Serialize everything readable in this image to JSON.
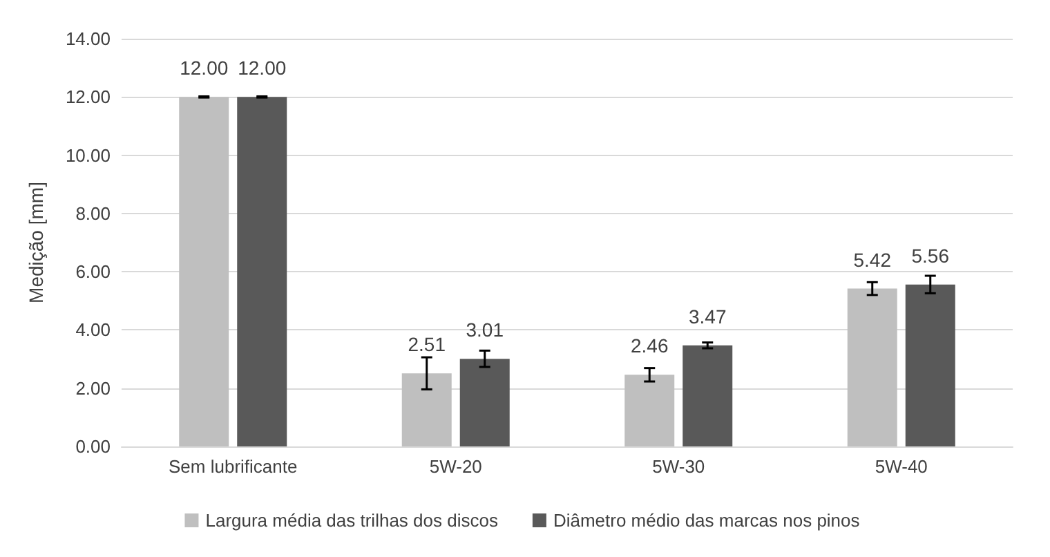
{
  "chart_data": {
    "type": "bar",
    "ylabel": "Medição [mm]",
    "categories": [
      "Sem lubrificante",
      "5W-20",
      "5W-30",
      "5W-40"
    ],
    "series": [
      {
        "name": "Largura média das trilhas dos discos",
        "color": "#bfbfbf",
        "values": [
          12.0,
          2.51,
          2.46,
          5.42
        ],
        "value_labels": [
          "12.00",
          "2.51",
          "2.46",
          "5.42"
        ],
        "errors": [
          0.02,
          0.55,
          0.23,
          0.22
        ]
      },
      {
        "name": "Diâmetro médio das marcas nos pinos",
        "color": "#595959",
        "values": [
          12.0,
          3.01,
          3.47,
          5.56
        ],
        "value_labels": [
          "12.00",
          "3.01",
          "3.47",
          "5.56"
        ],
        "errors": [
          0.02,
          0.28,
          0.1,
          0.3
        ]
      }
    ],
    "ylim": [
      0,
      14
    ],
    "yticks": [
      {
        "value": 0,
        "label": "0.00"
      },
      {
        "value": 2,
        "label": "2.00"
      },
      {
        "value": 4,
        "label": "4.00"
      },
      {
        "value": 6,
        "label": "6.00"
      },
      {
        "value": 8,
        "label": "8.00"
      },
      {
        "value": 10,
        "label": "10.00"
      },
      {
        "value": 12,
        "label": "12.00"
      },
      {
        "value": 14,
        "label": "14.00"
      }
    ],
    "grid": "y",
    "legend": "bottom"
  }
}
